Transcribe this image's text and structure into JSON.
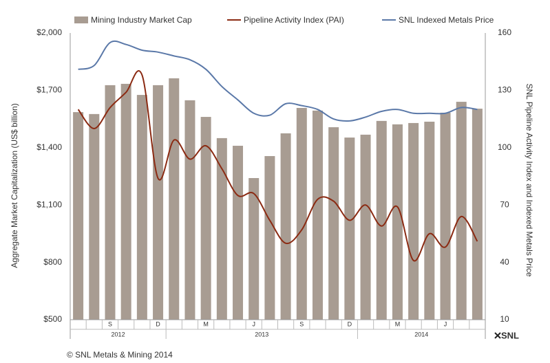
{
  "chart_data": {
    "type": "bar",
    "y_label": "Aggregate Market Capitalization (US$ billion)",
    "y2_label": "SNL Pipeline Activity Index and Indexed Metals Price",
    "categories": [
      null,
      null,
      "S",
      null,
      null,
      "D",
      null,
      null,
      "M",
      null,
      null,
      "J",
      null,
      null,
      "S",
      null,
      null,
      "D",
      null,
      null,
      "M",
      null,
      null,
      "J",
      null,
      null
    ],
    "years": [
      "2012",
      "2013",
      "2014"
    ],
    "year_months": [
      6,
      12,
      8
    ],
    "series": [
      {
        "name": "Mining Industry Market Cap",
        "type": "bar",
        "color": "#a89c92",
        "values": [
          1586,
          1576,
          1727,
          1734,
          1676,
          1727,
          1763,
          1648,
          1561,
          1450,
          1410,
          1241,
          1356,
          1475,
          1608,
          1594,
          1507,
          1453,
          1468,
          1540,
          1522,
          1529,
          1536,
          1583,
          1640,
          1604
        ]
      },
      {
        "name": "Pipeline Activity Index (PAI)",
        "type": "line",
        "axis": "y2",
        "color": "#8b2a12",
        "values": [
          120,
          110,
          121,
          129,
          138,
          84,
          104,
          94,
          101,
          89,
          75,
          76,
          62,
          50,
          57,
          73,
          72,
          62,
          70,
          59,
          69,
          41,
          55,
          48,
          64,
          51
        ]
      },
      {
        "name": "SNL Indexed Metals Price",
        "type": "line",
        "axis": "y2",
        "color": "#5a78a8",
        "values": [
          141,
          143,
          155,
          154,
          151,
          150,
          148,
          146,
          141,
          132,
          125,
          118,
          117,
          123,
          122,
          120,
          115,
          114,
          116,
          119,
          120,
          118,
          118,
          118,
          121,
          120
        ]
      }
    ],
    "ylim": [
      500,
      2000
    ],
    "yticks": [
      {
        "value": 500,
        "label": "$500"
      },
      {
        "value": 800,
        "label": "$800"
      },
      {
        "value": 1100,
        "label": "$1,100"
      },
      {
        "value": 1400,
        "label": "$1,400"
      },
      {
        "value": 1700,
        "label": "$1,700"
      },
      {
        "value": 2000,
        "label": "$2,000"
      }
    ],
    "y2lim": [
      10,
      160
    ],
    "y2ticks": [
      10,
      40,
      70,
      100,
      130,
      160
    ],
    "source": "© SNL Metals & Mining 2014",
    "logo": "SNL"
  }
}
